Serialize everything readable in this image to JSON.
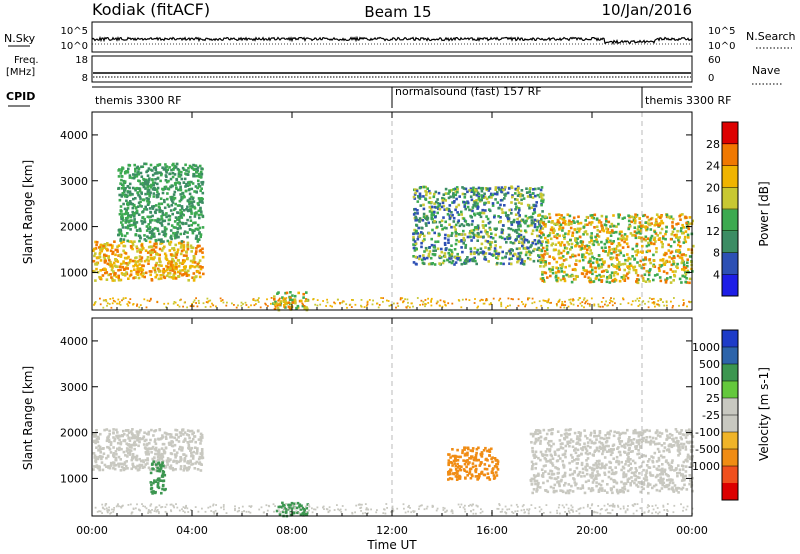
{
  "header": {
    "station": "Kodiak (fitACF)",
    "beam": "Beam 15",
    "date": "10/Jan/2016"
  },
  "strips": {
    "nsky": {
      "label": "N.Sky",
      "ticks": [
        "10^5",
        "10^0"
      ]
    },
    "nsearch": {
      "label": "N.Search",
      "ticks": [
        "10^5",
        "10^0"
      ]
    },
    "freq": {
      "label_line1": "Freq.",
      "label_line2": "[MHz]",
      "ticks": [
        "18",
        "8"
      ]
    },
    "nave": {
      "label": "Nave",
      "ticks": [
        "60",
        "0"
      ]
    },
    "cpid": {
      "label": "CPID",
      "segments": [
        {
          "label": "themis 3300 RF",
          "start_hour": 0,
          "end_hour": 12
        },
        {
          "label": "normalsound (fast) 157 RF",
          "start_hour": 12,
          "end_hour": 22
        },
        {
          "label": "themis 3300 RF",
          "start_hour": 22,
          "end_hour": 24
        }
      ]
    }
  },
  "colors": {
    "power_scale": [
      "#1e1ee6",
      "#2d50b4",
      "#3c8c64",
      "#3caa50",
      "#c8c832",
      "#f0b400",
      "#f07800",
      "#dc0000"
    ],
    "velocity_scale": [
      "#dc0000",
      "#f0501e",
      "#f08c14",
      "#f0b428",
      "#c8c8c0",
      "#c8c8c0",
      "#64c83c",
      "#3c9650",
      "#2d64aa",
      "#1e3cc8"
    ]
  },
  "chart_data": [
    {
      "type": "heatmap",
      "panel": "power",
      "xlabel": "",
      "ylabel": "Slant Range [km]",
      "xlim": [
        0,
        24
      ],
      "ylim": [
        180,
        4500
      ],
      "yticks": [
        1000,
        2000,
        3000,
        4000
      ],
      "colorbar": {
        "label": "Power [dB]",
        "ticks": [
          "28",
          "24",
          "20",
          "16",
          "12",
          "8",
          "4"
        ],
        "range": [
          0,
          32
        ]
      },
      "features": [
        {
          "region": "equatorward arc",
          "start_hour": 0.0,
          "end_hour": 4.4,
          "range_km": [
            850,
            1700
          ],
          "power_db": [
            16,
            28
          ]
        },
        {
          "region": "scatter above arc",
          "start_hour": 1.0,
          "end_hour": 4.4,
          "range_km": [
            1700,
            3400
          ],
          "power_db": [
            8,
            16
          ]
        },
        {
          "region": "near-range echoes",
          "start_hour": 7.2,
          "end_hour": 8.6,
          "range_km": [
            200,
            600
          ],
          "power_db": [
            12,
            28
          ]
        },
        {
          "region": "midday patches",
          "start_hour": 12.8,
          "end_hour": 18.0,
          "range_km": [
            1200,
            2900
          ],
          "power_db": [
            4,
            20
          ]
        },
        {
          "region": "evening arc",
          "start_hour": 17.8,
          "end_hour": 24.0,
          "range_km": [
            800,
            2300
          ],
          "power_db": [
            12,
            28
          ]
        }
      ]
    },
    {
      "type": "heatmap",
      "panel": "velocity",
      "xlabel": "Time UT",
      "ylabel": "Slant Range [km]",
      "xlim": [
        0,
        24
      ],
      "ylim": [
        180,
        4500
      ],
      "yticks": [
        1000,
        2000,
        3000,
        4000
      ],
      "xticks": [
        "00:00",
        "04:00",
        "08:00",
        "12:00",
        "16:00",
        "20:00",
        "00:00"
      ],
      "colorbar": {
        "label": "Velocity [m s-1]",
        "ticks": [
          "1000",
          "500",
          "100",
          "25",
          "-25",
          "-100",
          "-500",
          "-1000"
        ]
      },
      "features": [
        {
          "region": "ground scatter band",
          "start_hour": 0.0,
          "end_hour": 4.4,
          "range_km": [
            1200,
            2100
          ],
          "velocity_ms": [
            -25,
            25
          ]
        },
        {
          "region": "positive flow blob",
          "start_hour": 2.3,
          "end_hour": 2.9,
          "range_km": [
            700,
            1400
          ],
          "velocity_ms": [
            100,
            300
          ]
        },
        {
          "region": "near-range positive",
          "start_hour": 7.3,
          "end_hour": 8.6,
          "range_km": [
            200,
            500
          ],
          "velocity_ms": [
            100,
            500
          ]
        },
        {
          "region": "negative flow patch",
          "start_hour": 14.2,
          "end_hour": 16.2,
          "range_km": [
            1000,
            1700
          ],
          "velocity_ms": [
            -500,
            -100
          ]
        },
        {
          "region": "evening ground scatter",
          "start_hour": 17.5,
          "end_hour": 24.0,
          "range_km": [
            700,
            2100
          ],
          "velocity_ms": [
            -25,
            25
          ]
        }
      ]
    }
  ]
}
